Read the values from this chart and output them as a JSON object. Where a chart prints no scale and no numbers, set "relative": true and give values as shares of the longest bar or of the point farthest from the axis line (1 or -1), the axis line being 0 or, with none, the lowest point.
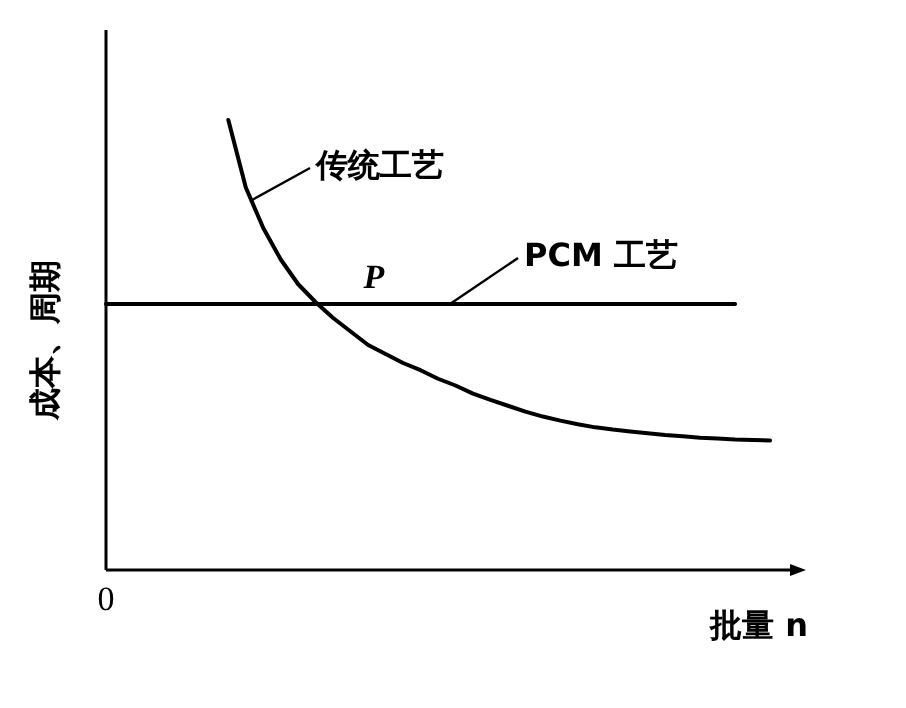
{
  "chart_data": {
    "type": "line",
    "relative": true,
    "xlabel": "批量 n",
    "ylabel": "成本、周期",
    "marker": "none",
    "line_style": "solid",
    "categories": [
      null,
      null,
      null,
      null,
      null,
      null,
      null,
      null,
      null,
      null,
      null,
      null,
      null,
      null,
      null,
      null,
      null,
      null,
      null,
      null,
      null,
      null,
      null,
      null,
      null,
      null,
      null,
      null,
      null,
      null,
      null,
      null,
      null,
      null,
      null,
      null,
      null,
      null,
      null,
      null,
      null
    ],
    "series": [
      {
        "name": "传统工艺",
        "color": "#000000",
        "values": [
          null,
          null,
          null,
          null,
          null,
          null,
          null,
          1.0,
          0.85,
          0.76,
          0.69,
          0.635,
          0.595,
          0.56,
          0.53,
          0.5,
          0.48,
          0.46,
          0.444,
          0.425,
          0.41,
          0.392,
          0.378,
          0.365,
          0.352,
          0.341,
          0.332,
          0.324,
          0.317,
          0.312,
          0.308,
          0.304,
          0.3,
          0.297,
          0.294,
          0.292,
          0.29,
          0.289,
          0.288,
          null,
          null
        ]
      },
      {
        "name": "PCM 工艺",
        "color": "#000000",
        "values": [
          0.591,
          0.591,
          0.591,
          0.591,
          0.591,
          0.591,
          0.591,
          0.591,
          0.591,
          0.591,
          0.591,
          0.591,
          0.591,
          0.591,
          0.591,
          0.591,
          0.591,
          0.591,
          0.591,
          0.591,
          0.591,
          0.591,
          0.591,
          0.591,
          0.591,
          0.591,
          0.591,
          0.591,
          0.591,
          0.591,
          0.591,
          0.591,
          0.591,
          0.591,
          0.591,
          0.591,
          0.591,
          null,
          null,
          null,
          null
        ]
      }
    ],
    "annotations": [
      "0",
      "P"
    ]
  }
}
